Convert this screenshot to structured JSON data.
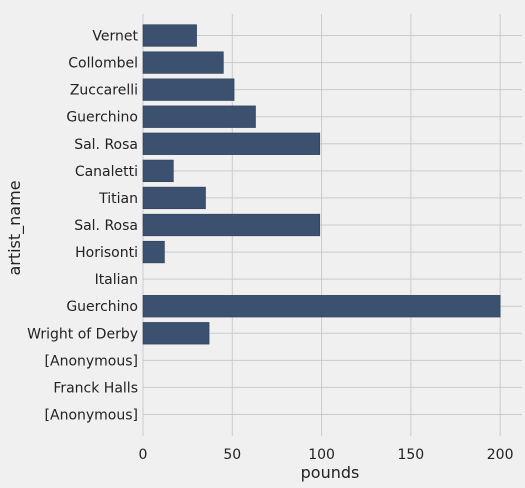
{
  "chart_data": {
    "type": "bar",
    "orientation": "horizontal",
    "categories": [
      "Vernet",
      "Collombel",
      "Zuccarelli",
      "Guerchino",
      "Sal. Rosa",
      "Canaletti",
      "Titian",
      "Sal. Rosa",
      "Horisonti",
      "Italian",
      "Guerchino",
      "Wright of Derby",
      "[Anonymous]",
      "Franck Halls",
      "[Anonymous]"
    ],
    "values": [
      30,
      45,
      51,
      63,
      99,
      17,
      35,
      99,
      12,
      0,
      200,
      37,
      0,
      0,
      0
    ],
    "xlabel": "pounds",
    "ylabel": "artist_name",
    "xlim": [
      0,
      210
    ],
    "xticks": [
      "0",
      "50",
      "100",
      "150",
      "200"
    ],
    "grid": true,
    "colors": {
      "bar": "#3c5070",
      "background": "#f0f0f0",
      "grid": "#cbcbcb"
    }
  }
}
